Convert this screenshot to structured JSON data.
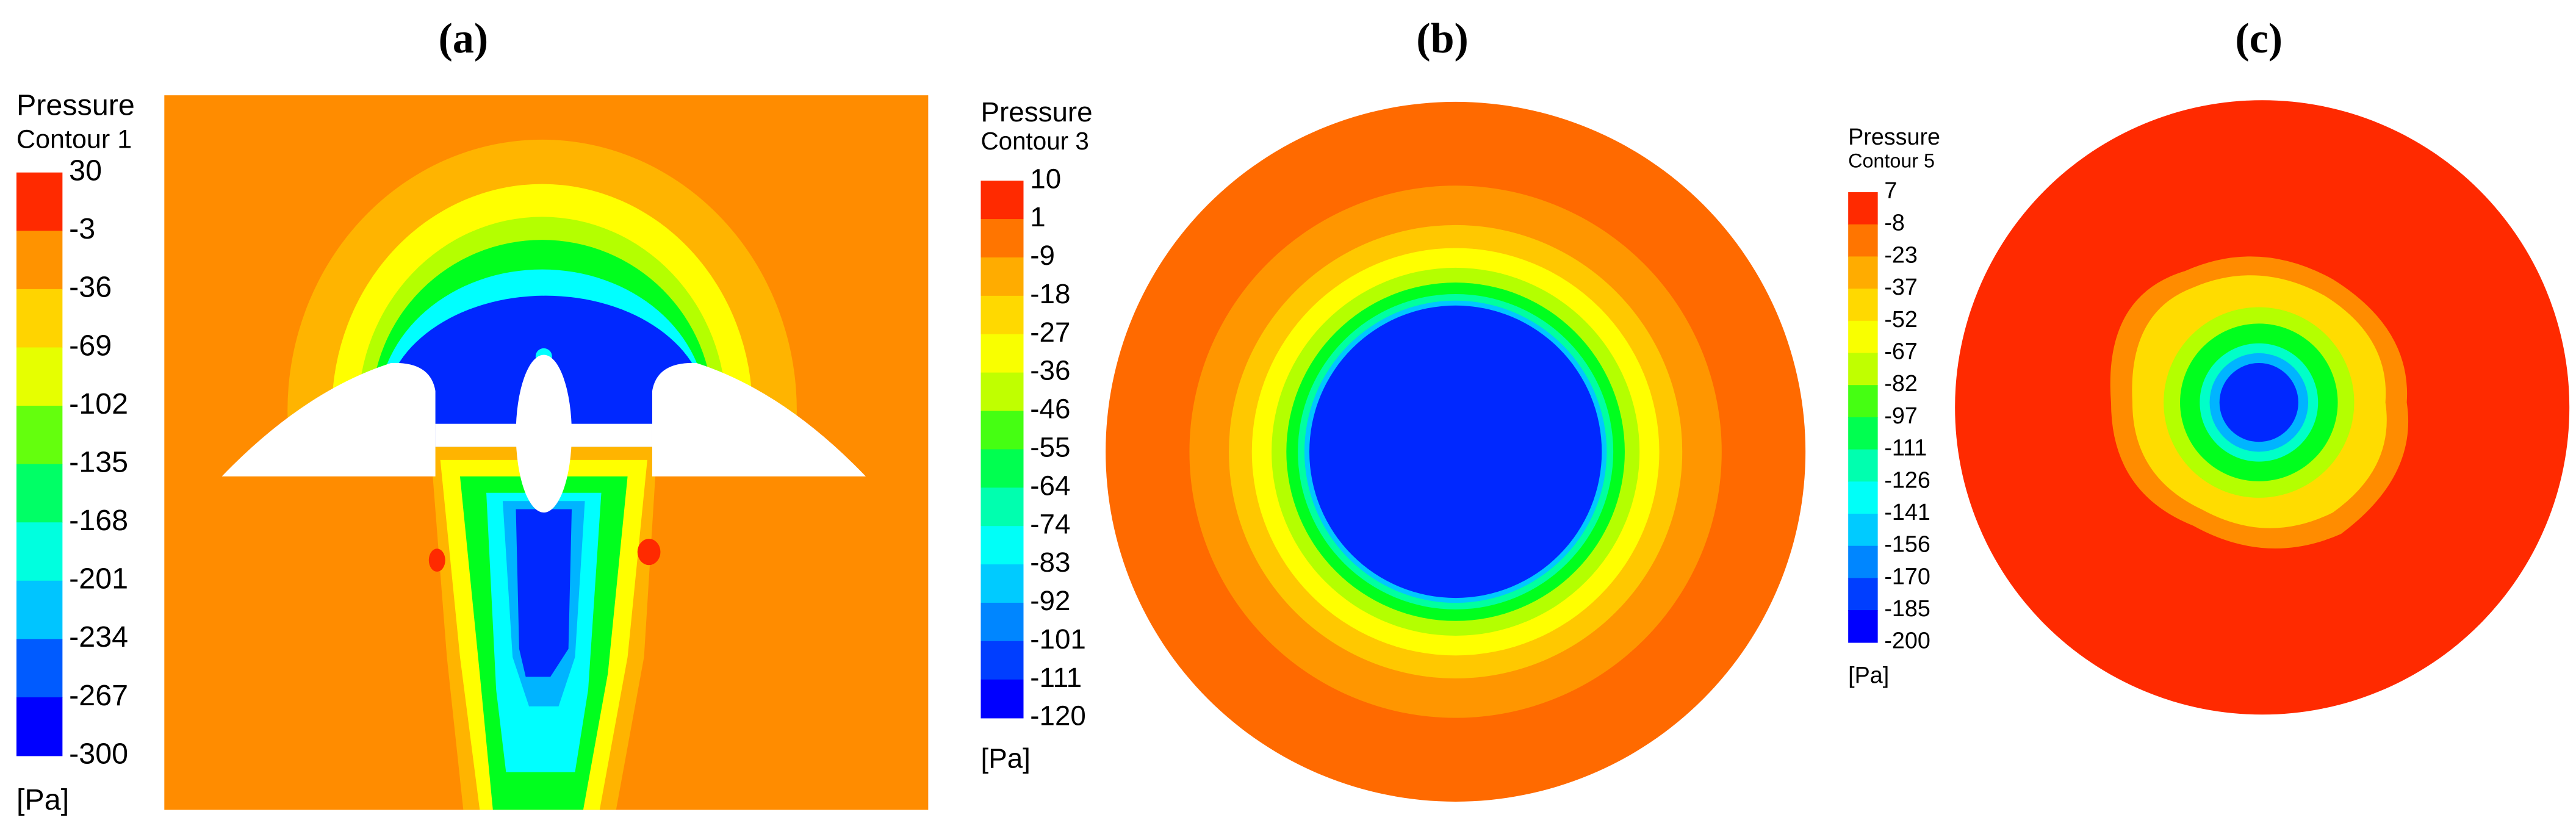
{
  "panels": [
    {
      "label": "(a)",
      "legend": {
        "title": "Pressure",
        "subtitle": "Contour 1",
        "levels": [
          30,
          -3,
          -36,
          -69,
          -102,
          -135,
          -168,
          -201,
          -234,
          -267,
          -300
        ],
        "unit": "[Pa]"
      }
    },
    {
      "label": "(b)",
      "legend": {
        "title": "Pressure",
        "subtitle": "Contour 3",
        "levels": [
          10,
          1,
          -9,
          -18,
          -27,
          -36,
          -46,
          -55,
          -64,
          -74,
          -83,
          -92,
          -101,
          -111,
          -120
        ],
        "unit": "[Pa]"
      }
    },
    {
      "label": "(c)",
      "legend": {
        "title": "Pressure",
        "subtitle": "Contour 5",
        "levels": [
          7,
          -8,
          -23,
          -37,
          -52,
          -67,
          -82,
          -97,
          -111,
          -126,
          -141,
          -156,
          -170,
          -185,
          -200
        ],
        "unit": "[Pa]"
      }
    }
  ]
}
